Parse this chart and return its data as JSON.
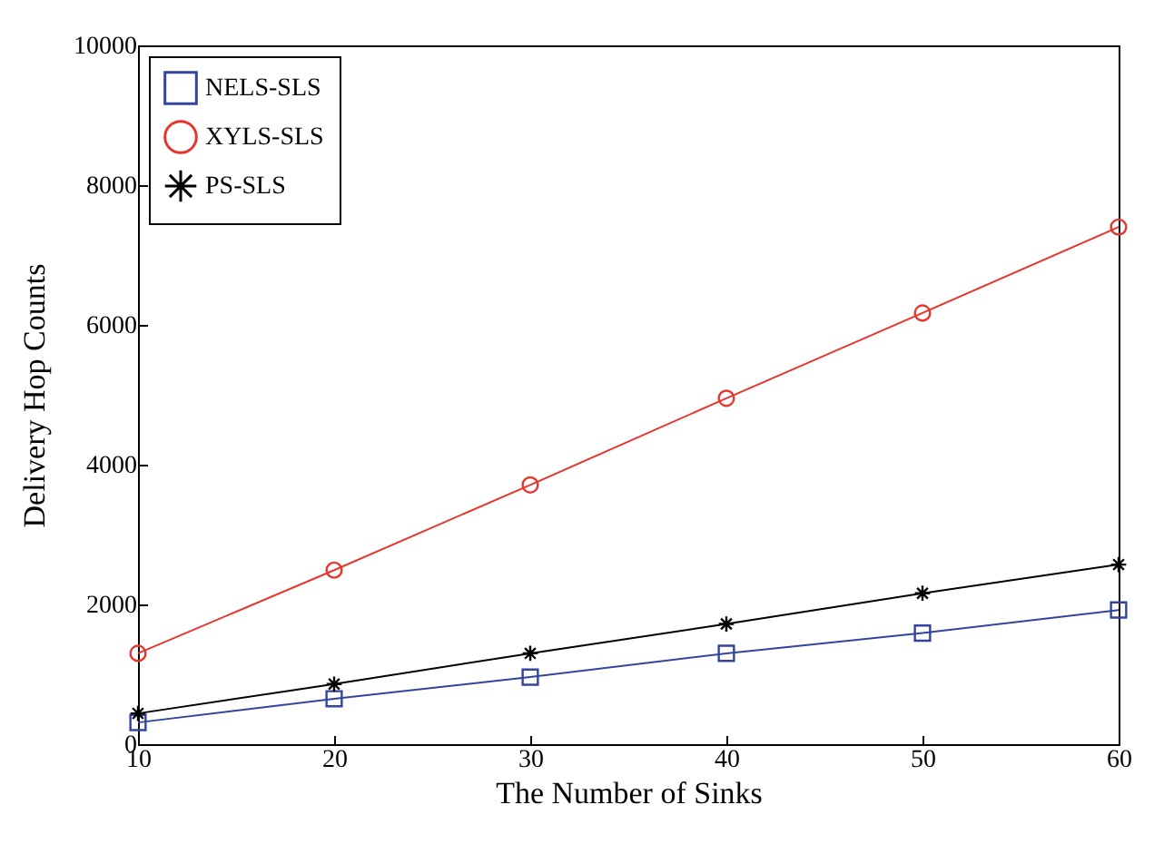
{
  "chart_data": {
    "type": "line",
    "xlabel": "The Number of Sinks",
    "ylabel": "Delivery Hop Counts",
    "x": [
      10,
      20,
      30,
      40,
      50,
      60
    ],
    "series": [
      {
        "name": "NELS-SLS",
        "color": "#33449e",
        "marker": "square",
        "values": [
          310,
          650,
          960,
          1300,
          1590,
          1920
        ]
      },
      {
        "name": "XYLS-SLS",
        "color": "#e8352b",
        "marker": "circle",
        "values": [
          1300,
          2490,
          3710,
          4950,
          6170,
          7400
        ]
      },
      {
        "name": "PS-SLS",
        "color": "#000000",
        "marker": "cross",
        "values": [
          440,
          860,
          1300,
          1720,
          2160,
          2570
        ]
      }
    ],
    "xlim": [
      10,
      60
    ],
    "xticks": [
      10,
      20,
      30,
      40,
      50,
      60
    ],
    "ylim": [
      0,
      10000
    ],
    "yticks": [
      0,
      2000,
      4000,
      6000,
      8000,
      10000
    ],
    "grid": false,
    "legend": "top left",
    "line_style": "solid"
  }
}
